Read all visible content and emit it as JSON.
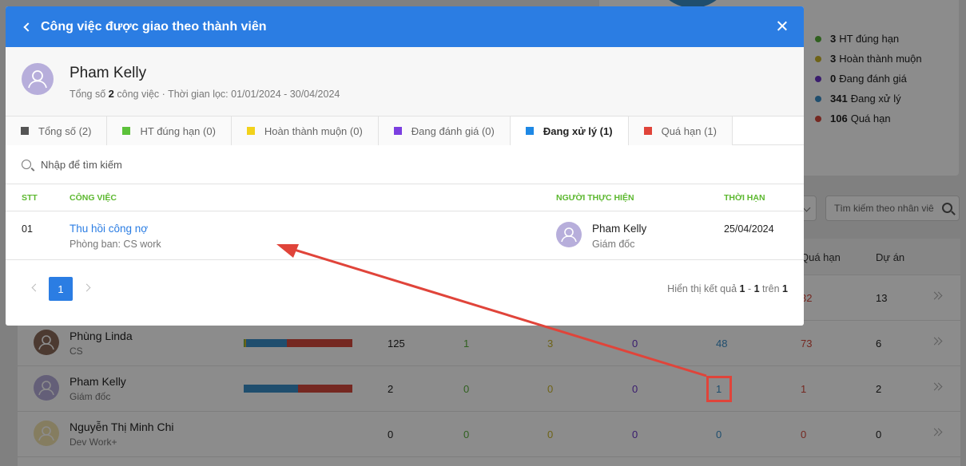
{
  "modal": {
    "title": "Công việc được giao theo thành viên",
    "member_name": "Pham Kelly",
    "meta_prefix": "Tổng số",
    "meta_count": "2",
    "meta_suffix": "công việc · Thời gian lọc: 01/01/2024 - 30/04/2024",
    "tabs": [
      {
        "label": "Tổng số (2)",
        "color": "#555555",
        "active": false
      },
      {
        "label": "HT đúng hạn (0)",
        "color": "#5cc13a",
        "active": false
      },
      {
        "label": "Hoàn thành muộn (0)",
        "color": "#f2d21b",
        "active": false
      },
      {
        "label": "Đang đánh giá (0)",
        "color": "#7b3fe0",
        "active": false
      },
      {
        "label": "Đang xử lý (1)",
        "color": "#1e88e5",
        "active": true
      },
      {
        "label": "Quá hạn (1)",
        "color": "#e0443a",
        "active": false
      }
    ],
    "search_placeholder": "Nhập để tìm kiếm",
    "columns": {
      "stt": "STT",
      "task": "CÔNG VIỆC",
      "assignee": "NGƯỜI THỰC HIỆN",
      "due": "THỜI HẠN"
    },
    "rows": [
      {
        "stt": "01",
        "task": "Thu hồi công nợ",
        "dept": "Phòng ban: CS work",
        "assignee": "Pham Kelly",
        "assignee_role": "Giám đốc",
        "due": "25/04/2024"
      }
    ],
    "pagination": {
      "current_page": "1",
      "info_prefix": "Hiển thị kết quả",
      "from": "1",
      "to": "1",
      "of_label": "trên",
      "total": "1"
    }
  },
  "background": {
    "legend": [
      {
        "value": "3",
        "label": "HT đúng hạn",
        "color": "#58b03a"
      },
      {
        "value": "3",
        "label": "Hoàn thành muộn",
        "color": "#c9b52a"
      },
      {
        "value": "0",
        "label": "Đang đánh giá",
        "color": "#6a35c9"
      },
      {
        "value": "341",
        "label": "Đang xử lý",
        "color": "#3a8ec9"
      },
      {
        "value": "106",
        "label": "Quá hạn",
        "color": "#d64a3c"
      }
    ],
    "search_placeholder": "Tìm kiếm theo nhân viê",
    "headers": {
      "overdue": "Quá hạn",
      "projects": "Dự án"
    },
    "partial_row": {
      "overdue": "32",
      "projects": "13"
    },
    "rows": [
      {
        "name": "Phùng Linda",
        "role": "CS",
        "total": "125",
        "ontime": "1",
        "late": "3",
        "review": "0",
        "processing": "48",
        "overdue": "73",
        "projects": "6",
        "bar": [
          0.01,
          0.01,
          0.38,
          0.6
        ]
      },
      {
        "name": "Pham Kelly",
        "role": "Giám đốc",
        "total": "2",
        "ontime": "0",
        "late": "0",
        "review": "0",
        "processing": "1",
        "overdue": "1",
        "projects": "2",
        "bar": [
          0,
          0,
          0.5,
          0.5
        ]
      },
      {
        "name": "Nguyễn Thị Minh Chi",
        "role": "Dev Work+",
        "total": "0",
        "ontime": "0",
        "late": "0",
        "review": "0",
        "processing": "0",
        "overdue": "0",
        "projects": "0",
        "bar": null
      }
    ],
    "value_colors": {
      "total": "#222222",
      "ontime": "#58b03a",
      "late": "#c9b52a",
      "review": "#6a35c9",
      "processing": "#3a8ec9",
      "overdue": "#d64a3c",
      "projects": "#222222"
    }
  }
}
